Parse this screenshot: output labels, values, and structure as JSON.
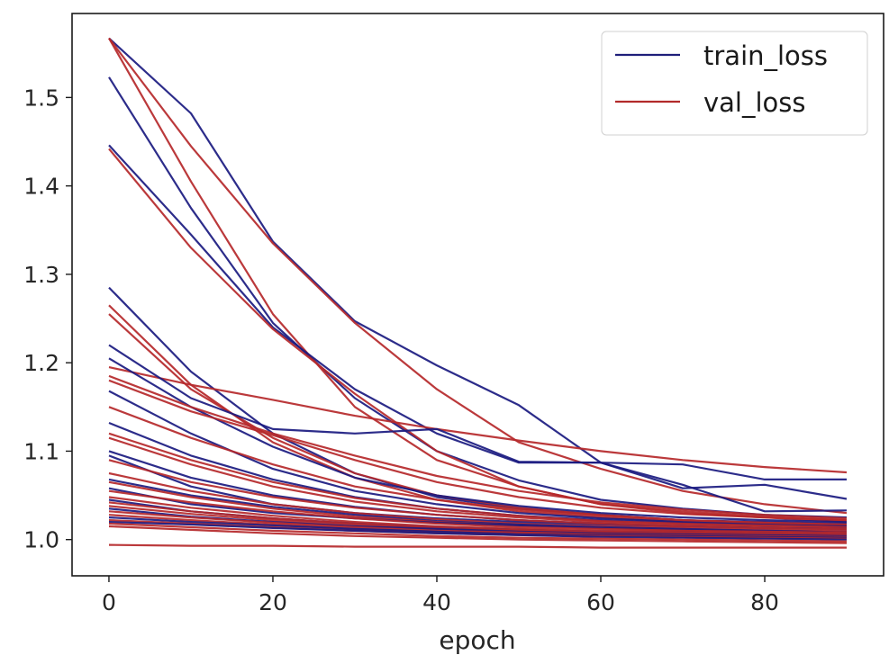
{
  "chart_data": {
    "type": "line",
    "title": "",
    "xlabel": "epoch",
    "ylabel": "",
    "xlim": [
      -4.5,
      94.5
    ],
    "ylim": [
      0.959,
      1.595
    ],
    "grid": false,
    "legend_placement": "top-right",
    "x": [
      0,
      10,
      20,
      30,
      40,
      50,
      60,
      70,
      80,
      90
    ],
    "xticks": [
      0,
      20,
      40,
      60,
      80
    ],
    "xtick_labels": [
      "0",
      "20",
      "40",
      "60",
      "80"
    ],
    "yticks": [
      1.0,
      1.1,
      1.2,
      1.3,
      1.4,
      1.5
    ],
    "ytick_labels": [
      "1.0",
      "1.1",
      "1.2",
      "1.3",
      "1.4",
      "1.5"
    ],
    "legend": [
      {
        "label": "train_loss",
        "color": "#1f1f7a"
      },
      {
        "label": "val_loss",
        "color": "#b22a2a"
      }
    ],
    "colors": {
      "train_loss": "#1a1a80",
      "val_loss": "#b5282a"
    },
    "series": [
      {
        "name": "train_loss",
        "values": [
          1.567,
          1.482,
          1.337,
          1.247,
          1.197,
          1.152,
          1.087,
          1.058,
          1.062,
          1.046
        ]
      },
      {
        "name": "val_loss",
        "values": [
          1.567,
          1.445,
          1.335,
          1.245,
          1.17,
          1.11,
          1.08,
          1.055,
          1.04,
          1.03
        ]
      },
      {
        "name": "train_loss",
        "values": [
          1.523,
          1.375,
          1.245,
          1.16,
          1.1,
          1.067,
          1.045,
          1.035,
          1.028,
          1.025
        ]
      },
      {
        "name": "val_loss",
        "values": [
          1.567,
          1.405,
          1.255,
          1.15,
          1.09,
          1.06,
          1.04,
          1.032,
          1.026,
          1.022
        ]
      },
      {
        "name": "train_loss",
        "values": [
          1.446,
          1.345,
          1.24,
          1.17,
          1.12,
          1.087,
          1.087,
          1.085,
          1.068,
          1.068
        ]
      },
      {
        "name": "val_loss",
        "values": [
          1.442,
          1.33,
          1.238,
          1.165,
          1.1,
          1.06,
          1.04,
          1.03,
          1.025,
          1.02
        ]
      },
      {
        "name": "train_loss",
        "values": [
          1.285,
          1.19,
          1.12,
          1.075,
          1.048,
          1.035,
          1.028,
          1.022,
          1.02,
          1.018
        ]
      },
      {
        "name": "val_loss",
        "values": [
          1.265,
          1.175,
          1.11,
          1.07,
          1.045,
          1.032,
          1.025,
          1.02,
          1.018,
          1.016
        ]
      },
      {
        "name": "val_loss",
        "values": [
          1.255,
          1.17,
          1.115,
          1.075,
          1.05,
          1.036,
          1.028,
          1.022,
          1.019,
          1.017
        ]
      },
      {
        "name": "val_loss",
        "values": [
          1.195,
          1.175,
          1.158,
          1.14,
          1.125,
          1.112,
          1.1,
          1.09,
          1.082,
          1.076
        ]
      },
      {
        "name": "train_loss",
        "values": [
          1.22,
          1.16,
          1.125,
          1.12,
          1.125,
          1.088,
          1.087,
          1.062,
          1.032,
          1.033
        ]
      },
      {
        "name": "train_loss",
        "values": [
          1.205,
          1.15,
          1.105,
          1.07,
          1.05,
          1.038,
          1.03,
          1.025,
          1.022,
          1.02
        ]
      },
      {
        "name": "val_loss",
        "values": [
          1.185,
          1.15,
          1.12,
          1.095,
          1.072,
          1.055,
          1.042,
          1.034,
          1.028,
          1.024
        ]
      },
      {
        "name": "val_loss",
        "values": [
          1.18,
          1.145,
          1.118,
          1.09,
          1.065,
          1.048,
          1.036,
          1.029,
          1.025,
          1.022
        ]
      },
      {
        "name": "train_loss",
        "values": [
          1.168,
          1.12,
          1.08,
          1.055,
          1.04,
          1.03,
          1.024,
          1.02,
          1.018,
          1.017
        ]
      },
      {
        "name": "val_loss",
        "values": [
          1.15,
          1.115,
          1.085,
          1.06,
          1.045,
          1.034,
          1.027,
          1.022,
          1.019,
          1.017
        ]
      },
      {
        "name": "train_loss",
        "values": [
          1.132,
          1.095,
          1.068,
          1.048,
          1.035,
          1.027,
          1.022,
          1.018,
          1.016,
          1.015
        ]
      },
      {
        "name": "val_loss",
        "values": [
          1.12,
          1.09,
          1.065,
          1.047,
          1.035,
          1.027,
          1.021,
          1.018,
          1.016,
          1.014
        ]
      },
      {
        "name": "val_loss",
        "values": [
          1.115,
          1.085,
          1.06,
          1.043,
          1.032,
          1.025,
          1.02,
          1.017,
          1.015,
          1.013
        ]
      },
      {
        "name": "train_loss",
        "values": [
          1.1,
          1.07,
          1.05,
          1.037,
          1.028,
          1.022,
          1.018,
          1.015,
          1.013,
          1.012
        ]
      },
      {
        "name": "train_loss",
        "values": [
          1.095,
          1.06,
          1.04,
          1.03,
          1.024,
          1.02,
          1.017,
          1.015,
          1.013,
          1.012
        ]
      },
      {
        "name": "val_loss",
        "values": [
          1.09,
          1.065,
          1.048,
          1.036,
          1.028,
          1.022,
          1.018,
          1.015,
          1.013,
          1.012
        ]
      },
      {
        "name": "val_loss",
        "values": [
          1.075,
          1.055,
          1.04,
          1.03,
          1.023,
          1.018,
          1.015,
          1.013,
          1.011,
          1.01
        ]
      },
      {
        "name": "train_loss",
        "values": [
          1.068,
          1.05,
          1.037,
          1.028,
          1.021,
          1.017,
          1.014,
          1.012,
          1.01,
          1.009
        ]
      },
      {
        "name": "val_loss",
        "values": [
          1.065,
          1.048,
          1.035,
          1.026,
          1.02,
          1.016,
          1.013,
          1.011,
          1.01,
          1.009
        ]
      },
      {
        "name": "train_loss",
        "values": [
          1.058,
          1.04,
          1.03,
          1.024,
          1.019,
          1.016,
          1.013,
          1.011,
          1.01,
          1.008
        ]
      },
      {
        "name": "val_loss",
        "values": [
          1.055,
          1.042,
          1.032,
          1.024,
          1.018,
          1.014,
          1.012,
          1.01,
          1.009,
          1.008
        ]
      },
      {
        "name": "val_loss",
        "values": [
          1.048,
          1.036,
          1.027,
          1.02,
          1.015,
          1.012,
          1.01,
          1.009,
          1.008,
          1.007
        ]
      },
      {
        "name": "train_loss",
        "values": [
          1.045,
          1.032,
          1.024,
          1.018,
          1.014,
          1.011,
          1.009,
          1.008,
          1.007,
          1.006
        ]
      },
      {
        "name": "val_loss",
        "values": [
          1.042,
          1.032,
          1.024,
          1.018,
          1.014,
          1.011,
          1.009,
          1.008,
          1.007,
          1.006
        ]
      },
      {
        "name": "val_loss",
        "values": [
          1.038,
          1.029,
          1.022,
          1.016,
          1.012,
          1.01,
          1.008,
          1.007,
          1.006,
          1.005
        ]
      },
      {
        "name": "train_loss",
        "values": [
          1.035,
          1.026,
          1.02,
          1.015,
          1.012,
          1.009,
          1.007,
          1.006,
          1.005,
          1.004
        ]
      },
      {
        "name": "val_loss",
        "values": [
          1.032,
          1.025,
          1.019,
          1.014,
          1.01,
          1.008,
          1.006,
          1.005,
          1.004,
          1.003
        ]
      },
      {
        "name": "val_loss",
        "values": [
          1.028,
          1.022,
          1.017,
          1.012,
          1.009,
          1.007,
          1.005,
          1.004,
          1.003,
          1.002
        ]
      },
      {
        "name": "train_loss",
        "values": [
          1.025,
          1.02,
          1.016,
          1.012,
          1.009,
          1.006,
          1.005,
          1.004,
          1.003,
          1.002
        ]
      },
      {
        "name": "val_loss",
        "values": [
          1.022,
          1.018,
          1.014,
          1.01,
          1.007,
          1.005,
          1.004,
          1.003,
          1.002,
          1.001
        ]
      },
      {
        "name": "train_loss",
        "values": [
          1.02,
          1.017,
          1.013,
          1.01,
          1.007,
          1.005,
          1.003,
          1.002,
          1.001,
          1.0
        ]
      },
      {
        "name": "val_loss",
        "values": [
          1.018,
          1.014,
          1.01,
          1.007,
          1.004,
          1.002,
          1.001,
          1.0,
          0.999,
          0.998
        ]
      },
      {
        "name": "val_loss",
        "values": [
          1.015,
          1.011,
          1.007,
          1.004,
          1.002,
          1.0,
          0.999,
          0.998,
          0.997,
          0.996
        ]
      },
      {
        "name": "val_loss",
        "values": [
          0.994,
          0.993,
          0.993,
          0.992,
          0.992,
          0.992,
          0.991,
          0.991,
          0.991,
          0.991
        ]
      }
    ]
  }
}
